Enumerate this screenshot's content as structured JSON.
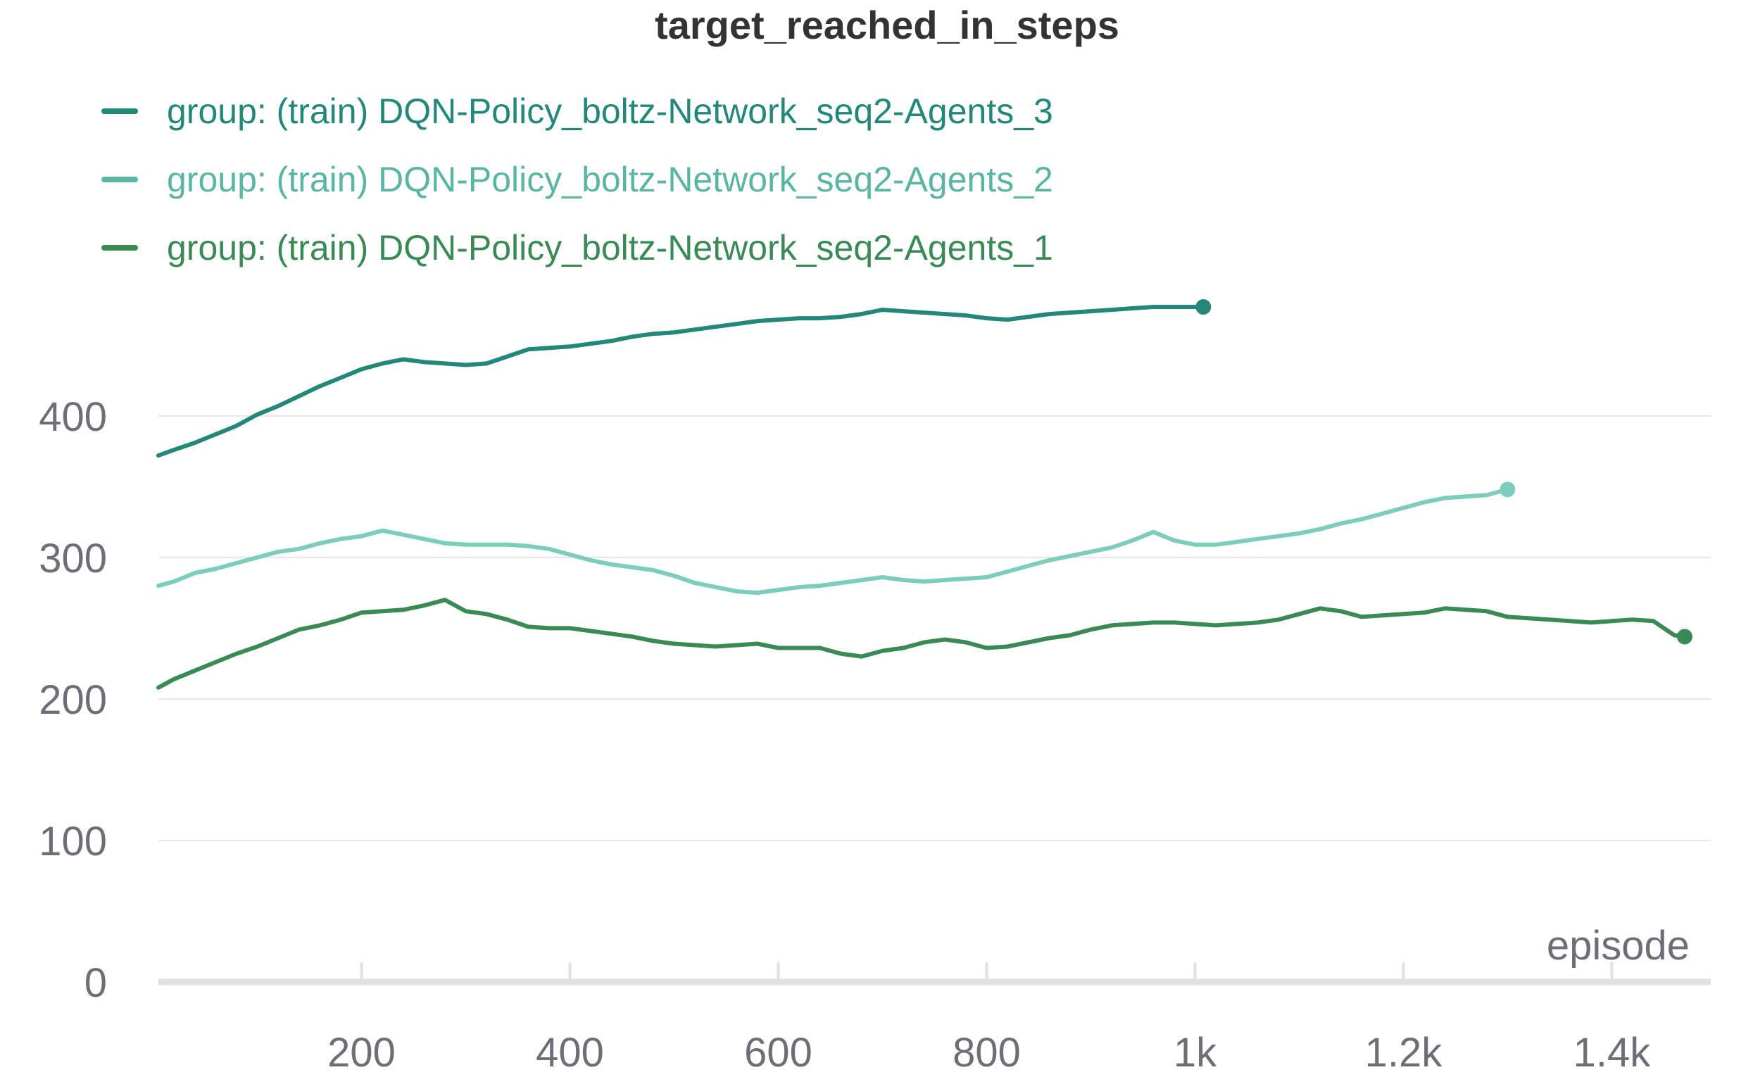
{
  "chart_data": {
    "type": "line",
    "title": "target_reached_in_steps",
    "xlabel": "episode",
    "ylabel": "",
    "xlim": [
      5,
      1495
    ],
    "ylim": [
      0,
      480
    ],
    "x_ticks": [
      200,
      400,
      600,
      800,
      1000,
      1200,
      1400
    ],
    "x_tick_labels": [
      "200",
      "400",
      "600",
      "800",
      "1k",
      "1.2k",
      "1.4k"
    ],
    "y_ticks": [
      0,
      100,
      200,
      300,
      400
    ],
    "y_tick_labels": [
      "0",
      "100",
      "200",
      "300",
      "400"
    ],
    "grid": "horizontal",
    "legend_position": "top-left",
    "series": [
      {
        "name": "group: (train) DQN-Policy_boltz-Network_seq2-Agents_3",
        "color": "#23877a",
        "x": [
          5,
          20,
          40,
          60,
          80,
          100,
          120,
          140,
          160,
          180,
          200,
          220,
          240,
          260,
          280,
          300,
          320,
          340,
          360,
          380,
          400,
          420,
          440,
          460,
          480,
          500,
          520,
          540,
          560,
          580,
          600,
          620,
          640,
          660,
          680,
          700,
          720,
          740,
          760,
          780,
          800,
          820,
          840,
          860,
          880,
          900,
          920,
          940,
          960,
          980,
          1000,
          1008
        ],
        "values": [
          372,
          376,
          381,
          387,
          393,
          401,
          407,
          414,
          421,
          427,
          433,
          437,
          440,
          438,
          437,
          436,
          437,
          442,
          447,
          448,
          449,
          451,
          453,
          456,
          458,
          459,
          461,
          463,
          465,
          467,
          468,
          469,
          469,
          470,
          472,
          475,
          474,
          473,
          472,
          471,
          469,
          468,
          470,
          472,
          473,
          474,
          475,
          476,
          477,
          477,
          477,
          477
        ]
      },
      {
        "name": "group: (train) DQN-Policy_boltz-Network_seq2-Agents_2",
        "color": "#7dcdbc",
        "x": [
          5,
          20,
          40,
          60,
          80,
          100,
          120,
          140,
          160,
          180,
          200,
          220,
          240,
          260,
          280,
          300,
          320,
          340,
          360,
          380,
          400,
          420,
          440,
          460,
          480,
          500,
          520,
          540,
          560,
          580,
          600,
          620,
          640,
          660,
          680,
          700,
          720,
          740,
          760,
          780,
          800,
          820,
          840,
          860,
          880,
          900,
          920,
          940,
          960,
          980,
          1000,
          1020,
          1040,
          1060,
          1080,
          1100,
          1120,
          1140,
          1160,
          1180,
          1200,
          1220,
          1240,
          1260,
          1280,
          1300
        ],
        "values": [
          280,
          283,
          289,
          292,
          296,
          300,
          304,
          306,
          310,
          313,
          315,
          319,
          316,
          313,
          310,
          309,
          309,
          309,
          308,
          306,
          302,
          298,
          295,
          293,
          291,
          287,
          282,
          279,
          276,
          275,
          277,
          279,
          280,
          282,
          284,
          286,
          284,
          283,
          284,
          285,
          286,
          290,
          294,
          298,
          301,
          304,
          307,
          312,
          318,
          312,
          309,
          309,
          311,
          313,
          315,
          317,
          320,
          324,
          327,
          331,
          335,
          339,
          342,
          343,
          344,
          348
        ]
      },
      {
        "name": "group: (train) DQN-Policy_boltz-Network_seq2-Agents_1",
        "color": "#3a8a55",
        "x": [
          5,
          20,
          40,
          60,
          80,
          100,
          120,
          140,
          160,
          180,
          200,
          220,
          240,
          260,
          280,
          300,
          320,
          340,
          360,
          380,
          400,
          420,
          440,
          460,
          480,
          500,
          520,
          540,
          560,
          580,
          600,
          620,
          640,
          660,
          680,
          700,
          720,
          740,
          760,
          780,
          800,
          820,
          840,
          860,
          880,
          900,
          920,
          940,
          960,
          980,
          1000,
          1020,
          1040,
          1060,
          1080,
          1100,
          1120,
          1140,
          1160,
          1180,
          1200,
          1220,
          1240,
          1260,
          1280,
          1300,
          1320,
          1340,
          1360,
          1380,
          1400,
          1420,
          1440,
          1460,
          1470
        ],
        "values": [
          208,
          214,
          220,
          226,
          232,
          237,
          243,
          249,
          252,
          256,
          261,
          262,
          263,
          266,
          270,
          262,
          260,
          256,
          251,
          250,
          250,
          248,
          246,
          244,
          241,
          239,
          238,
          237,
          238,
          239,
          236,
          236,
          236,
          232,
          230,
          234,
          236,
          240,
          242,
          240,
          236,
          237,
          240,
          243,
          245,
          249,
          252,
          253,
          254,
          254,
          253,
          252,
          253,
          254,
          256,
          260,
          264,
          262,
          258,
          259,
          260,
          261,
          264,
          263,
          262,
          258,
          257,
          256,
          255,
          254,
          255,
          256,
          255,
          245,
          244
        ]
      }
    ]
  }
}
